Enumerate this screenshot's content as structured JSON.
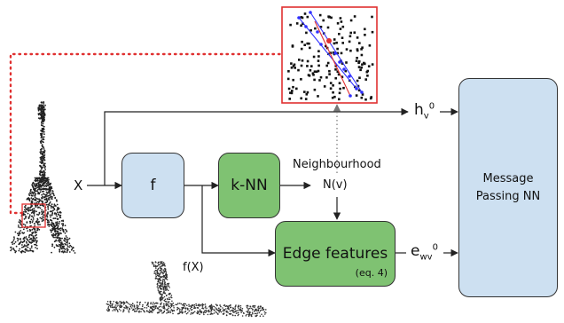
{
  "input_label": "X",
  "f_label": "f",
  "knn_label": "k-NN",
  "neighbourhood_label": "Neighbourhood",
  "nv_label": "N(v)",
  "edge_features_label": "Edge features",
  "eq_label": "(eq. 4)",
  "fx_label": "f(X)",
  "h_base": "h",
  "h_sub": "v",
  "h_sup": "0",
  "e_base": "e",
  "e_sub": "wv",
  "e_sup": "0",
  "mpnn_line1": "Message",
  "mpnn_line2": "Passing NN",
  "colors": {
    "blue_box": "#cde0f1",
    "green_box": "#7fc272",
    "highlight_red": "#e03030",
    "neighbour_blue": "#3030ff"
  }
}
